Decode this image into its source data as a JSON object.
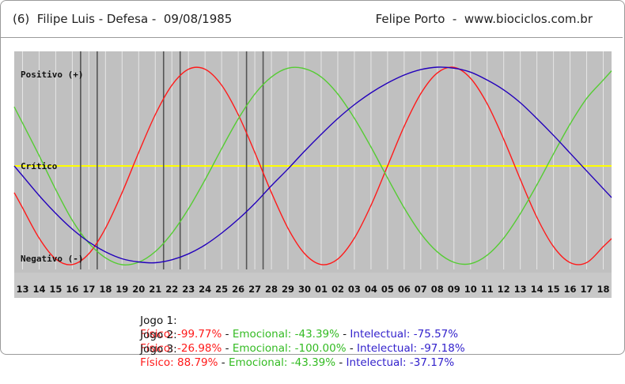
{
  "header": {
    "title": "(6)  Filipe Luis - Defesa -  09/08/1985",
    "credit": "Felipe Porto  -  www.biociclos.com.br"
  },
  "colors": {
    "fisico": "#ff1a1a",
    "emocional": "#55cc33",
    "intelectual": "#2200bb",
    "critico": "#ffff00",
    "background": "#c0c0c0",
    "grid": "#e6e6e6",
    "game_marker": "#555555"
  },
  "chart_data": {
    "type": "line",
    "xlabel": "",
    "ylabel": "",
    "ylim": [
      -100,
      100
    ],
    "x": [
      "13",
      "14",
      "15",
      "16",
      "17",
      "18",
      "19",
      "20",
      "21",
      "22",
      "23",
      "24",
      "25",
      "26",
      "27",
      "28",
      "29",
      "30",
      "01",
      "02",
      "03",
      "04",
      "05",
      "06",
      "07",
      "08",
      "09",
      "10",
      "11",
      "12",
      "13",
      "14",
      "15",
      "16",
      "17",
      "18"
    ],
    "y_axis_labels": {
      "positive": "Positivo (+)",
      "critical": "Crítico",
      "negative": "Negativo (-)"
    },
    "series": [
      {
        "name": "Físico",
        "color": "#ff1a1a",
        "values": [
          -42.4,
          -73.1,
          -94.2,
          -99.8,
          -88.8,
          -63.1,
          -27.0,
          13.6,
          52.0,
          81.7,
          97.9,
          97.9,
          81.7,
          52.0,
          13.6,
          -27.0,
          -63.1,
          -88.8,
          -99.8,
          -94.2,
          -73.1,
          -40.0,
          0.0,
          40.0,
          73.1,
          94.2,
          99.8,
          88.8,
          63.1,
          27.0,
          -13.6,
          -52.0,
          -81.7,
          -97.9,
          -97.9,
          -81.7
        ]
      },
      {
        "name": "Emocional",
        "color": "#55cc33",
        "values": [
          43.4,
          10.5,
          -23.8,
          -55.1,
          -78.2,
          -93.0,
          -100.0,
          -97.5,
          -86.7,
          -68.2,
          -43.4,
          -14.0,
          17.5,
          47.6,
          72.8,
          90.1,
          99.0,
          98.5,
          90.1,
          72.8,
          48.3,
          19.2,
          -12.2,
          -42.4,
          -68.3,
          -87.0,
          -97.6,
          -99.0,
          -90.5,
          -73.1,
          -48.3,
          -19.2,
          12.2,
          42.4,
          68.3,
          87.0
        ]
      },
      {
        "name": "Intelectual",
        "color": "#2200bb",
        "values": [
          -10.0,
          -30.0,
          -48.0,
          -64.0,
          -77.0,
          -87.0,
          -94.0,
          -97.2,
          -98.0,
          -95.0,
          -89.0,
          -80.0,
          -68.0,
          -54.0,
          -38.0,
          -20.0,
          -3.0,
          15.0,
          32.0,
          48.0,
          62.0,
          74.0,
          84.0,
          92.0,
          97.5,
          100.0,
          99.0,
          95.0,
          87.0,
          77.0,
          64.0,
          48.0,
          31.0,
          13.0,
          -5.0,
          -23.0
        ]
      }
    ],
    "game_markers": [
      {
        "name": "Jogo 1",
        "between": [
          "16",
          "17"
        ]
      },
      {
        "name": "Jogo 1",
        "between": [
          "17",
          "18"
        ]
      },
      {
        "name": "Jogo 2",
        "between": [
          "21",
          "22"
        ]
      },
      {
        "name": "Jogo 2",
        "between": [
          "22",
          "23"
        ]
      },
      {
        "name": "Jogo 3",
        "between": [
          "26",
          "27"
        ]
      },
      {
        "name": "Jogo 3",
        "between": [
          "27",
          "28"
        ]
      }
    ],
    "legend": [
      {
        "label": "Jogo 1:",
        "fisico": "Físico: -99.77%",
        "emocional": "Emocional: -43.39%",
        "intelectual": "Intelectual: -75.57%"
      },
      {
        "label": "Jogo 2:",
        "fisico": "Físico: -26.98%",
        "emocional": "Emocional: -100.00%",
        "intelectual": "Intelectual: -97.18%"
      },
      {
        "label": "Jogo 3:",
        "fisico": "Físico: 88.79%",
        "emocional": "Emocional: -43.39%",
        "intelectual": "Intelectual: -37.17%"
      }
    ]
  }
}
